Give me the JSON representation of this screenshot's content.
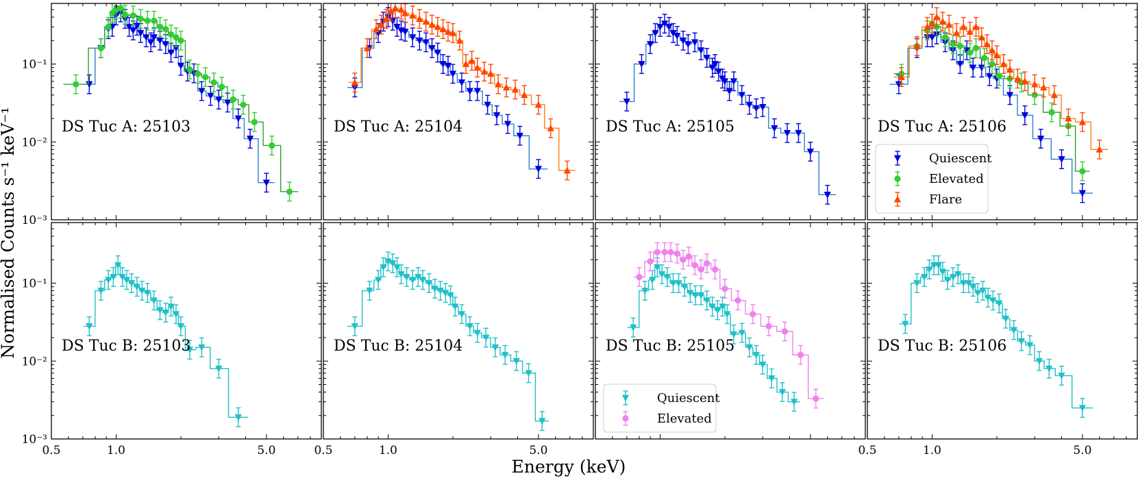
{
  "figure": {
    "xlabel": "Energy (keV)",
    "ylabel": "Normalised Counts s⁻¹ keV⁻¹"
  },
  "chart_data": {
    "type": "scatter",
    "description_style": "grid of step-line model spectra with error-bar points, log-log axes",
    "xscale": "log",
    "yscale": "log",
    "xlim": [
      0.5,
      9.0
    ],
    "ylim": [
      0.001,
      0.6
    ],
    "x_ticks": [
      0.5,
      1.0,
      5.0
    ],
    "x_tick_labels": [
      "0.5",
      "1.0",
      "5.0"
    ],
    "y_ticks": [
      0.001,
      0.01,
      0.1
    ],
    "y_tick_labels": [
      "10⁻³",
      "10⁻²",
      "10⁻¹"
    ],
    "colors": {
      "quiescent_marker": "#0000dd",
      "quiescent_model": "#2f7fd0",
      "elevated_marker": "#33cc33",
      "elevated_model": "#2ca02c",
      "flare_marker": "#ff4500",
      "flare_model": "#ff7f0e",
      "b_quiescent": "#20c0c8",
      "b_elevated": "#ee82ee"
    },
    "panels": [
      {
        "label": "DS Tuc A: 25103",
        "row": 0,
        "col": 0,
        "show_x_labels": false,
        "series": [
          {
            "name": "Quiescent",
            "marker": "tri-down",
            "color": "#0000dd",
            "model_color": "#2f7fd0",
            "x": [
              0.75,
              0.85,
              0.92,
              0.96,
              1.0,
              1.05,
              1.1,
              1.15,
              1.2,
              1.25,
              1.3,
              1.38,
              1.45,
              1.5,
              1.6,
              1.7,
              1.8,
              1.9,
              2.0,
              2.15,
              2.3,
              2.5,
              2.75,
              3.0,
              3.3,
              3.7,
              4.2,
              5.0
            ],
            "y": [
              0.055,
              0.16,
              0.28,
              0.3,
              0.42,
              0.46,
              0.38,
              0.3,
              0.27,
              0.31,
              0.25,
              0.22,
              0.19,
              0.22,
              0.2,
              0.18,
              0.14,
              0.16,
              0.095,
              0.08,
              0.076,
              0.045,
              0.039,
              0.035,
              0.032,
              0.02,
              0.011,
              0.003
            ]
          },
          {
            "name": "Elevated",
            "marker": "circle",
            "color": "#33cc33",
            "model_color": "#2ca02c",
            "x": [
              0.65,
              0.85,
              0.92,
              0.96,
              1.0,
              1.05,
              1.1,
              1.2,
              1.3,
              1.4,
              1.5,
              1.6,
              1.7,
              1.8,
              1.9,
              2.0,
              2.2,
              2.4,
              2.6,
              2.85,
              3.1,
              3.5,
              3.9,
              4.4,
              5.3,
              6.4
            ],
            "y": [
              0.055,
              0.16,
              0.3,
              0.45,
              0.5,
              0.52,
              0.43,
              0.42,
              0.38,
              0.36,
              0.36,
              0.3,
              0.28,
              0.24,
              0.22,
              0.2,
              0.085,
              0.075,
              0.068,
              0.058,
              0.051,
              0.035,
              0.03,
              0.018,
              0.009,
              0.0023
            ]
          }
        ]
      },
      {
        "label": "DS Tuc A: 25104",
        "row": 0,
        "col": 1,
        "show_x_labels": false,
        "series": [
          {
            "name": "Quiescent",
            "marker": "tri-down",
            "color": "#0000dd",
            "model_color": "#2f7fd0",
            "x": [
              0.7,
              0.82,
              0.9,
              0.95,
              1.0,
              1.05,
              1.1,
              1.15,
              1.2,
              1.3,
              1.4,
              1.5,
              1.6,
              1.7,
              1.8,
              1.9,
              2.0,
              2.2,
              2.4,
              2.6,
              2.9,
              3.2,
              3.6,
              4.1,
              5.0
            ],
            "y": [
              0.05,
              0.16,
              0.25,
              0.35,
              0.4,
              0.36,
              0.3,
              0.27,
              0.26,
              0.22,
              0.2,
              0.19,
              0.16,
              0.14,
              0.1,
              0.095,
              0.075,
              0.058,
              0.045,
              0.045,
              0.03,
              0.022,
              0.017,
              0.012,
              0.0045
            ]
          },
          {
            "name": "Flare",
            "marker": "tri-up",
            "color": "#ff4500",
            "model_color": "#ff7f0e",
            "x": [
              0.7,
              0.8,
              0.88,
              0.93,
              0.98,
              1.03,
              1.08,
              1.15,
              1.2,
              1.3,
              1.4,
              1.5,
              1.6,
              1.7,
              1.8,
              1.9,
              2.0,
              2.15,
              2.3,
              2.45,
              2.6,
              2.8,
              3.0,
              3.25,
              3.55,
              3.9,
              4.3,
              5.0,
              5.7,
              6.8
            ],
            "y": [
              0.058,
              0.16,
              0.28,
              0.32,
              0.38,
              0.48,
              0.52,
              0.5,
              0.45,
              0.42,
              0.38,
              0.35,
              0.32,
              0.3,
              0.28,
              0.26,
              0.25,
              0.2,
              0.1,
              0.11,
              0.09,
              0.08,
              0.075,
              0.055,
              0.05,
              0.047,
              0.04,
              0.03,
              0.015,
              0.0043
            ]
          }
        ]
      },
      {
        "label": "DS Tuc A: 25105",
        "row": 0,
        "col": 2,
        "show_x_labels": false,
        "series": [
          {
            "name": "Quiescent",
            "marker": "tri-down",
            "color": "#0000dd",
            "model_color": "#2f7fd0",
            "x": [
              0.7,
              0.82,
              0.9,
              0.95,
              1.0,
              1.05,
              1.1,
              1.15,
              1.2,
              1.28,
              1.35,
              1.45,
              1.55,
              1.65,
              1.75,
              1.8,
              1.87,
              1.95,
              2.0,
              2.1,
              2.2,
              2.4,
              2.6,
              2.8,
              3.0,
              3.4,
              3.9,
              4.4,
              5.0,
              6.0
            ],
            "y": [
              0.033,
              0.1,
              0.18,
              0.25,
              0.3,
              0.33,
              0.3,
              0.25,
              0.23,
              0.2,
              0.18,
              0.19,
              0.15,
              0.12,
              0.09,
              0.1,
              0.08,
              0.065,
              0.06,
              0.045,
              0.06,
              0.04,
              0.03,
              0.027,
              0.028,
              0.015,
              0.013,
              0.013,
              0.0075,
              0.0021
            ]
          }
        ]
      },
      {
        "label": "DS Tuc A: 25106",
        "row": 0,
        "col": 3,
        "show_x_labels": false,
        "legend": {
          "position": "lower-left",
          "entries": [
            "Quiescent",
            "Elevated",
            "Flare"
          ]
        },
        "series": [
          {
            "name": "Quiescent",
            "marker": "tri-down",
            "color": "#0000dd",
            "model_color": "#2f7fd0",
            "x": [
              0.7,
              0.85,
              0.95,
              1.0,
              1.05,
              1.15,
              1.25,
              1.35,
              1.45,
              1.55,
              1.7,
              1.85,
              2.0,
              2.3,
              2.7,
              3.2,
              4.0,
              5.0
            ],
            "y": [
              0.055,
              0.16,
              0.22,
              0.22,
              0.24,
              0.19,
              0.15,
              0.1,
              0.15,
              0.09,
              0.09,
              0.07,
              0.065,
              0.04,
              0.022,
              0.011,
              0.006,
              0.0022
            ]
          },
          {
            "name": "Elevated",
            "marker": "circle",
            "color": "#33cc33",
            "model_color": "#2ca02c",
            "x": [
              0.72,
              0.85,
              0.95,
              1.0,
              1.05,
              1.15,
              1.25,
              1.35,
              1.5,
              1.6,
              1.75,
              1.9,
              2.05,
              2.3,
              2.6,
              3.0,
              3.6,
              4.3,
              5.0
            ],
            "y": [
              0.075,
              0.17,
              0.27,
              0.33,
              0.3,
              0.22,
              0.18,
              0.17,
              0.14,
              0.16,
              0.12,
              0.1,
              0.07,
              0.065,
              0.058,
              0.04,
              0.024,
              0.016,
              0.0042
            ]
          },
          {
            "name": "Flare",
            "marker": "tri-up",
            "color": "#ff4500",
            "model_color": "#ff7f0e",
            "x": [
              0.72,
              0.85,
              0.95,
              1.0,
              1.05,
              1.12,
              1.2,
              1.3,
              1.4,
              1.5,
              1.6,
              1.7,
              1.8,
              1.9,
              2.0,
              2.15,
              2.3,
              2.5,
              2.7,
              3.0,
              3.3,
              3.7,
              4.3,
              5.0,
              6.0
            ],
            "y": [
              0.068,
              0.17,
              0.3,
              0.33,
              0.4,
              0.35,
              0.32,
              0.25,
              0.3,
              0.26,
              0.3,
              0.22,
              0.18,
              0.15,
              0.13,
              0.1,
              0.085,
              0.065,
              0.06,
              0.055,
              0.05,
              0.04,
              0.02,
              0.018,
              0.008
            ]
          }
        ]
      },
      {
        "label": "DS Tuc B: 25103",
        "row": 1,
        "col": 0,
        "show_x_labels": true,
        "series": [
          {
            "name": "Quiescent",
            "marker": "tri-down",
            "color": "#20c0c8",
            "model_color": "#20c0c8",
            "x": [
              0.75,
              0.85,
              0.92,
              0.97,
              1.02,
              1.07,
              1.12,
              1.18,
              1.25,
              1.32,
              1.4,
              1.5,
              1.6,
              1.7,
              1.8,
              1.9,
              2.0,
              2.2,
              2.5,
              3.0,
              3.7
            ],
            "y": [
              0.028,
              0.08,
              0.11,
              0.12,
              0.17,
              0.12,
              0.11,
              0.1,
              0.09,
              0.08,
              0.075,
              0.06,
              0.045,
              0.042,
              0.05,
              0.04,
              0.028,
              0.014,
              0.015,
              0.008,
              0.0019
            ]
          }
        ]
      },
      {
        "label": "DS Tuc B: 25104",
        "row": 1,
        "col": 1,
        "show_x_labels": true,
        "series": [
          {
            "name": "Quiescent",
            "marker": "tri-down",
            "color": "#20c0c8",
            "model_color": "#20c0c8",
            "x": [
              0.7,
              0.82,
              0.9,
              0.95,
              1.0,
              1.05,
              1.1,
              1.15,
              1.22,
              1.3,
              1.38,
              1.45,
              1.55,
              1.65,
              1.75,
              1.85,
              1.95,
              2.05,
              2.2,
              2.4,
              2.6,
              2.85,
              3.15,
              3.5,
              3.95,
              4.5,
              5.2
            ],
            "y": [
              0.028,
              0.08,
              0.11,
              0.16,
              0.19,
              0.18,
              0.16,
              0.13,
              0.12,
              0.11,
              0.12,
              0.11,
              0.1,
              0.085,
              0.08,
              0.075,
              0.07,
              0.05,
              0.04,
              0.028,
              0.023,
              0.02,
              0.015,
              0.012,
              0.01,
              0.007,
              0.0017
            ]
          }
        ]
      },
      {
        "label": "DS Tuc B: 25105",
        "row": 1,
        "col": 2,
        "show_x_labels": false,
        "legend": {
          "position": "lower-left",
          "entries": [
            "Quiescent",
            "Elevated"
          ]
        },
        "series": [
          {
            "name": "Quiescent",
            "marker": "tri-down",
            "color": "#20c0c8",
            "model_color": "#20c0c8",
            "x": [
              0.75,
              0.85,
              0.92,
              0.97,
              1.02,
              1.08,
              1.15,
              1.22,
              1.3,
              1.38,
              1.46,
              1.55,
              1.65,
              1.75,
              1.85,
              1.95,
              2.05,
              2.2,
              2.4,
              2.6,
              2.8,
              3.0,
              3.3,
              3.7,
              4.2
            ],
            "y": [
              0.027,
              0.08,
              0.11,
              0.16,
              0.13,
              0.12,
              0.1,
              0.1,
              0.09,
              0.075,
              0.07,
              0.07,
              0.06,
              0.05,
              0.045,
              0.05,
              0.04,
              0.022,
              0.023,
              0.015,
              0.012,
              0.009,
              0.006,
              0.004,
              0.003
            ]
          },
          {
            "name": "Elevated",
            "marker": "circle",
            "color": "#ee82ee",
            "model_color": "#ee82ee",
            "x": [
              0.8,
              0.9,
              0.97,
              1.05,
              1.12,
              1.2,
              1.28,
              1.36,
              1.45,
              1.55,
              1.65,
              1.8,
              2.0,
              2.3,
              2.7,
              3.2,
              3.8,
              4.5,
              5.3
            ],
            "y": [
              0.12,
              0.19,
              0.25,
              0.25,
              0.25,
              0.24,
              0.2,
              0.22,
              0.17,
              0.15,
              0.18,
              0.15,
              0.085,
              0.06,
              0.04,
              0.028,
              0.024,
              0.012,
              0.0033
            ]
          }
        ]
      },
      {
        "label": "DS Tuc B: 25106",
        "row": 1,
        "col": 3,
        "show_x_labels": true,
        "series": [
          {
            "name": "Quiescent",
            "marker": "tri-down",
            "color": "#20c0c8",
            "model_color": "#20c0c8",
            "x": [
              0.75,
              0.85,
              0.92,
              0.97,
              1.02,
              1.07,
              1.12,
              1.18,
              1.25,
              1.32,
              1.4,
              1.48,
              1.55,
              1.63,
              1.72,
              1.82,
              1.92,
              2.05,
              2.2,
              2.4,
              2.6,
              2.85,
              3.15,
              3.5,
              4.0,
              5.0
            ],
            "y": [
              0.03,
              0.1,
              0.12,
              0.15,
              0.17,
              0.17,
              0.14,
              0.11,
              0.12,
              0.13,
              0.1,
              0.1,
              0.09,
              0.075,
              0.08,
              0.065,
              0.06,
              0.055,
              0.035,
              0.025,
              0.018,
              0.016,
              0.01,
              0.008,
              0.0065,
              0.0025
            ]
          }
        ]
      }
    ]
  }
}
